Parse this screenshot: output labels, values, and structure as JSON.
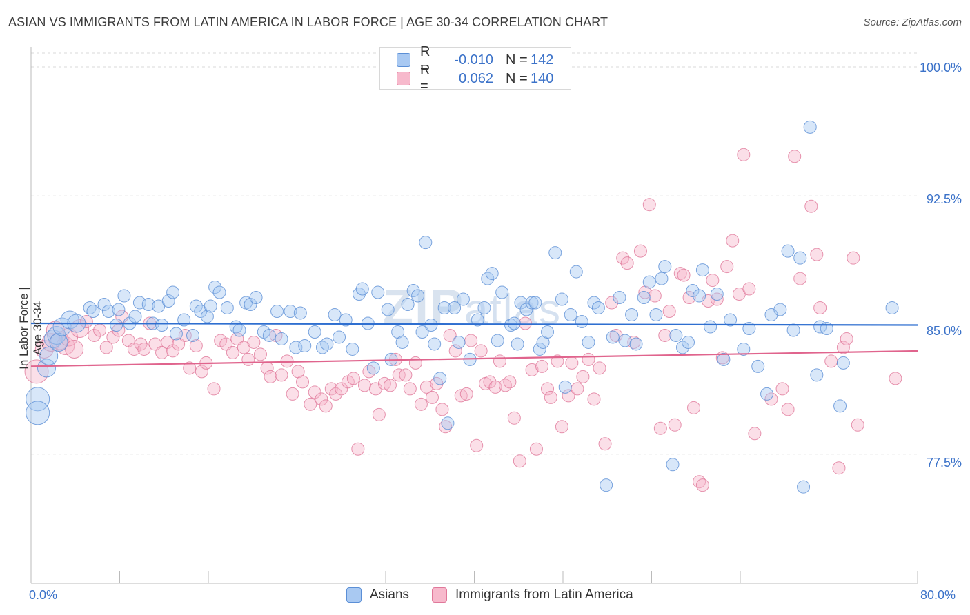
{
  "header": {
    "title": "ASIAN VS IMMIGRANTS FROM LATIN AMERICA IN LABOR FORCE | AGE 30-34 CORRELATION CHART",
    "source": "Source: ZipAtlas.com"
  },
  "watermark": {
    "zip": "ZIP",
    "atlas": "atlas"
  },
  "legend_top": {
    "rows": [
      {
        "r_label": "R =",
        "r_value": "-0.010",
        "n_label": "N =",
        "n_value": "142"
      },
      {
        "r_label": "R =",
        "r_value": "0.062",
        "n_label": "N =",
        "n_value": "140"
      }
    ]
  },
  "colors": {
    "asians_fill": "#a9c9f2",
    "asians_stroke": "#5b8fd6",
    "asians_line": "#2f6fd0",
    "latin_fill": "#f7b9cc",
    "latin_stroke": "#e0789a",
    "latin_line": "#e0648d",
    "value_text": "#3b72c9",
    "grid": "#d8d8d8"
  },
  "chart_data": {
    "type": "scatter",
    "title": "ASIAN VS IMMIGRANTS FROM LATIN AMERICA IN LABOR FORCE | AGE 30-34 CORRELATION CHART",
    "xlabel": "",
    "ylabel": "In Labor Force | Age 30-34",
    "xlim": [
      0,
      80
    ],
    "ylim": [
      70.0,
      101.0
    ],
    "x_tick_labels": [
      "0.0%",
      "80.0%"
    ],
    "y_ticks": [
      77.5,
      85.0,
      92.5,
      100.0
    ],
    "y_tick_labels": [
      "77.5%",
      "85.0%",
      "92.5%",
      "100.0%"
    ],
    "grid": true,
    "legend_position": "bottom",
    "series": [
      {
        "name": "Asians",
        "trend": [
          [
            0,
            85.1
          ],
          [
            80,
            85.0
          ]
        ],
        "points": [
          [
            0.6,
            80.7
          ],
          [
            0.6,
            79.9
          ],
          [
            1.4,
            82.5
          ],
          [
            1.6,
            83.2
          ],
          [
            2.0,
            84.2
          ],
          [
            2.3,
            84.4
          ],
          [
            2.5,
            84.0
          ],
          [
            2.8,
            84.9
          ],
          [
            3.5,
            85.3
          ],
          [
            4.1,
            85.1
          ],
          [
            5.3,
            86.0
          ],
          [
            5.6,
            85.8
          ],
          [
            6.6,
            86.2
          ],
          [
            7.0,
            85.8
          ],
          [
            7.7,
            85.0
          ],
          [
            7.9,
            85.9
          ],
          [
            8.4,
            86.7
          ],
          [
            8.9,
            85.1
          ],
          [
            9.4,
            85.5
          ],
          [
            9.8,
            86.3
          ],
          [
            10.6,
            86.2
          ],
          [
            11.0,
            85.1
          ],
          [
            11.5,
            86.1
          ],
          [
            11.8,
            85.0
          ],
          [
            12.4,
            86.4
          ],
          [
            12.8,
            86.9
          ],
          [
            13.1,
            84.5
          ],
          [
            13.8,
            85.3
          ],
          [
            14.6,
            84.4
          ],
          [
            14.9,
            86.1
          ],
          [
            15.3,
            85.8
          ],
          [
            15.9,
            85.5
          ],
          [
            16.2,
            86.1
          ],
          [
            16.6,
            87.2
          ],
          [
            17.0,
            86.9
          ],
          [
            17.7,
            86.0
          ],
          [
            18.5,
            84.9
          ],
          [
            18.8,
            84.7
          ],
          [
            19.4,
            86.3
          ],
          [
            19.8,
            86.2
          ],
          [
            20.3,
            86.6
          ],
          [
            21.0,
            84.6
          ],
          [
            21.5,
            84.4
          ],
          [
            22.2,
            85.8
          ],
          [
            22.6,
            84.2
          ],
          [
            23.4,
            85.8
          ],
          [
            23.9,
            83.7
          ],
          [
            24.3,
            85.7
          ],
          [
            24.7,
            83.8
          ],
          [
            25.6,
            84.6
          ],
          [
            26.3,
            83.7
          ],
          [
            26.7,
            83.9
          ],
          [
            27.4,
            85.6
          ],
          [
            27.8,
            84.3
          ],
          [
            28.4,
            85.3
          ],
          [
            29.0,
            83.6
          ],
          [
            29.6,
            86.8
          ],
          [
            29.9,
            87.1
          ],
          [
            30.4,
            85.1
          ],
          [
            30.9,
            82.5
          ],
          [
            31.3,
            86.9
          ],
          [
            32.2,
            85.9
          ],
          [
            32.5,
            83.0
          ],
          [
            33.1,
            84.6
          ],
          [
            33.5,
            84.0
          ],
          [
            34.0,
            86.2
          ],
          [
            34.5,
            87.0
          ],
          [
            34.9,
            86.7
          ],
          [
            35.3,
            84.6
          ],
          [
            35.6,
            89.8
          ],
          [
            36.1,
            85.0
          ],
          [
            36.4,
            83.9
          ],
          [
            36.9,
            81.9
          ],
          [
            37.3,
            86.0
          ],
          [
            37.6,
            79.3
          ],
          [
            38.2,
            86.0
          ],
          [
            38.6,
            84.0
          ],
          [
            39.0,
            86.5
          ],
          [
            39.6,
            83.0
          ],
          [
            40.3,
            85.3
          ],
          [
            40.9,
            86.0
          ],
          [
            41.2,
            87.7
          ],
          [
            41.6,
            88.0
          ],
          [
            42.1,
            84.1
          ],
          [
            42.5,
            86.9
          ],
          [
            43.3,
            85.0
          ],
          [
            43.6,
            85.1
          ],
          [
            43.9,
            83.9
          ],
          [
            44.2,
            86.3
          ],
          [
            44.7,
            85.9
          ],
          [
            45.2,
            86.3
          ],
          [
            45.5,
            86.3
          ],
          [
            45.9,
            83.6
          ],
          [
            46.2,
            84.0
          ],
          [
            46.6,
            84.6
          ],
          [
            47.3,
            89.2
          ],
          [
            47.9,
            86.5
          ],
          [
            48.2,
            81.4
          ],
          [
            48.7,
            85.6
          ],
          [
            49.2,
            88.1
          ],
          [
            49.7,
            85.2
          ],
          [
            50.3,
            84.0
          ],
          [
            50.8,
            86.3
          ],
          [
            51.2,
            86.0
          ],
          [
            51.9,
            75.7
          ],
          [
            52.5,
            84.3
          ],
          [
            53.1,
            86.6
          ],
          [
            53.6,
            84.1
          ],
          [
            54.2,
            85.6
          ],
          [
            54.6,
            83.9
          ],
          [
            55.3,
            86.6
          ],
          [
            55.8,
            87.5
          ],
          [
            56.4,
            85.6
          ],
          [
            56.9,
            87.7
          ],
          [
            57.2,
            88.4
          ],
          [
            57.9,
            76.9
          ],
          [
            58.2,
            84.4
          ],
          [
            58.8,
            83.7
          ],
          [
            59.3,
            84.0
          ],
          [
            59.7,
            87.0
          ],
          [
            60.3,
            86.7
          ],
          [
            60.6,
            88.2
          ],
          [
            61.3,
            84.9
          ],
          [
            61.9,
            86.8
          ],
          [
            62.5,
            83.0
          ],
          [
            63.1,
            85.3
          ],
          [
            64.3,
            83.6
          ],
          [
            64.8,
            84.8
          ],
          [
            65.6,
            82.6
          ],
          [
            66.4,
            81.0
          ],
          [
            66.8,
            85.6
          ],
          [
            67.6,
            85.9
          ],
          [
            68.3,
            89.3
          ],
          [
            68.8,
            84.7
          ],
          [
            69.4,
            88.9
          ],
          [
            69.7,
            75.6
          ],
          [
            70.3,
            96.5
          ],
          [
            70.9,
            82.1
          ],
          [
            71.2,
            84.9
          ],
          [
            71.8,
            84.8
          ],
          [
            73.0,
            80.3
          ],
          [
            73.3,
            82.8
          ],
          [
            77.7,
            86.0
          ]
        ]
      },
      {
        "name": "Immigrants from Latin America",
        "trend": [
          [
            0,
            82.6
          ],
          [
            80,
            83.5
          ]
        ],
        "points": [
          [
            0.5,
            82.3
          ],
          [
            1.2,
            83.6
          ],
          [
            1.8,
            84.0
          ],
          [
            2.2,
            84.7
          ],
          [
            2.6,
            84.1
          ],
          [
            3.1,
            83.8
          ],
          [
            3.4,
            84.3
          ],
          [
            3.9,
            83.6
          ],
          [
            4.4,
            84.8
          ],
          [
            5.0,
            85.2
          ],
          [
            5.7,
            84.4
          ],
          [
            6.2,
            84.7
          ],
          [
            6.8,
            83.7
          ],
          [
            7.4,
            84.3
          ],
          [
            7.9,
            84.7
          ],
          [
            8.2,
            85.5
          ],
          [
            8.8,
            84.1
          ],
          [
            9.3,
            83.6
          ],
          [
            9.9,
            83.9
          ],
          [
            10.2,
            83.6
          ],
          [
            10.7,
            85.1
          ],
          [
            11.2,
            83.9
          ],
          [
            11.8,
            83.4
          ],
          [
            12.3,
            84.0
          ],
          [
            12.8,
            83.5
          ],
          [
            13.3,
            83.9
          ],
          [
            13.9,
            84.4
          ],
          [
            14.3,
            82.5
          ],
          [
            14.9,
            83.8
          ],
          [
            15.4,
            82.3
          ],
          [
            15.8,
            82.8
          ],
          [
            16.5,
            81.3
          ],
          [
            17.1,
            84.1
          ],
          [
            17.6,
            83.9
          ],
          [
            18.2,
            83.4
          ],
          [
            18.6,
            84.2
          ],
          [
            19.2,
            83.7
          ],
          [
            19.6,
            83.0
          ],
          [
            20.1,
            84.0
          ],
          [
            20.7,
            83.3
          ],
          [
            21.3,
            82.5
          ],
          [
            21.6,
            82.0
          ],
          [
            22.1,
            84.4
          ],
          [
            22.6,
            82.1
          ],
          [
            23.1,
            82.9
          ],
          [
            23.6,
            81.0
          ],
          [
            24.1,
            82.3
          ],
          [
            24.5,
            81.7
          ],
          [
            25.2,
            80.4
          ],
          [
            25.6,
            81.1
          ],
          [
            26.2,
            80.7
          ],
          [
            26.6,
            80.3
          ],
          [
            27.1,
            81.3
          ],
          [
            27.5,
            81.0
          ],
          [
            28.0,
            81.3
          ],
          [
            28.6,
            81.7
          ],
          [
            29.1,
            81.9
          ],
          [
            29.5,
            77.8
          ],
          [
            30.1,
            81.5
          ],
          [
            30.5,
            82.3
          ],
          [
            31.1,
            81.3
          ],
          [
            31.4,
            79.8
          ],
          [
            31.9,
            81.6
          ],
          [
            32.4,
            81.5
          ],
          [
            32.9,
            83.0
          ],
          [
            33.2,
            82.1
          ],
          [
            33.8,
            82.1
          ],
          [
            34.2,
            81.3
          ],
          [
            34.7,
            82.8
          ],
          [
            35.2,
            80.4
          ],
          [
            35.7,
            81.4
          ],
          [
            36.2,
            80.8
          ],
          [
            36.6,
            81.6
          ],
          [
            37.1,
            80.1
          ],
          [
            37.4,
            79.1
          ],
          [
            37.8,
            84.4
          ],
          [
            38.3,
            83.5
          ],
          [
            38.8,
            80.9
          ],
          [
            39.3,
            81.0
          ],
          [
            39.7,
            84.1
          ],
          [
            40.2,
            78.0
          ],
          [
            40.6,
            83.5
          ],
          [
            41.0,
            81.6
          ],
          [
            41.4,
            81.7
          ],
          [
            41.9,
            81.4
          ],
          [
            42.3,
            82.9
          ],
          [
            42.8,
            81.5
          ],
          [
            43.2,
            81.7
          ],
          [
            43.6,
            79.6
          ],
          [
            44.1,
            77.1
          ],
          [
            44.6,
            85.1
          ],
          [
            45.2,
            82.4
          ],
          [
            45.6,
            77.8
          ],
          [
            46.1,
            82.6
          ],
          [
            46.6,
            81.3
          ],
          [
            46.9,
            80.8
          ],
          [
            47.5,
            82.9
          ],
          [
            47.9,
            79.1
          ],
          [
            48.5,
            80.9
          ],
          [
            48.8,
            82.8
          ],
          [
            49.3,
            81.3
          ],
          [
            49.8,
            82.0
          ],
          [
            50.3,
            83.0
          ],
          [
            50.8,
            80.7
          ],
          [
            51.3,
            82.5
          ],
          [
            51.8,
            78.1
          ],
          [
            52.4,
            86.3
          ],
          [
            52.8,
            84.4
          ],
          [
            53.4,
            88.9
          ],
          [
            53.8,
            88.6
          ],
          [
            54.4,
            84.0
          ],
          [
            55.0,
            89.3
          ],
          [
            55.4,
            86.9
          ],
          [
            55.8,
            92.0
          ],
          [
            56.3,
            86.7
          ],
          [
            56.8,
            79.0
          ],
          [
            57.2,
            84.4
          ],
          [
            57.6,
            85.8
          ],
          [
            58.1,
            79.2
          ],
          [
            58.6,
            88.0
          ],
          [
            58.9,
            87.9
          ],
          [
            59.4,
            86.6
          ],
          [
            59.8,
            80.2
          ],
          [
            60.3,
            75.9
          ],
          [
            60.6,
            75.7
          ],
          [
            61.1,
            86.4
          ],
          [
            61.5,
            87.6
          ],
          [
            61.9,
            86.5
          ],
          [
            62.4,
            83.1
          ],
          [
            62.8,
            88.4
          ],
          [
            63.3,
            89.9
          ],
          [
            63.9,
            86.8
          ],
          [
            64.3,
            94.9
          ],
          [
            64.8,
            87.1
          ],
          [
            65.3,
            78.7
          ],
          [
            66.8,
            80.7
          ],
          [
            67.8,
            81.3
          ],
          [
            68.3,
            80.1
          ],
          [
            68.9,
            94.8
          ],
          [
            69.4,
            87.7
          ],
          [
            70.4,
            91.9
          ],
          [
            70.9,
            89.1
          ],
          [
            71.2,
            86.0
          ],
          [
            72.2,
            82.9
          ],
          [
            72.9,
            76.7
          ],
          [
            73.3,
            83.7
          ],
          [
            73.6,
            84.2
          ],
          [
            74.2,
            88.9
          ],
          [
            74.6,
            79.2
          ],
          [
            78.0,
            81.9
          ]
        ]
      }
    ]
  },
  "axes": {
    "y_label": "In Labor Force | Age 30-34",
    "x_min_label": "0.0%",
    "x_max_label": "80.0%",
    "y_tick_labels": [
      "100.0%",
      "92.5%",
      "85.0%",
      "77.5%"
    ]
  },
  "legend_bottom": {
    "items": [
      "Asians",
      "Immigrants from Latin America"
    ]
  }
}
